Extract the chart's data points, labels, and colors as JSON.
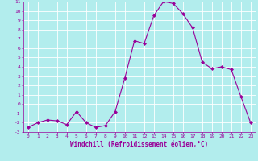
{
  "x": [
    0,
    1,
    2,
    3,
    4,
    5,
    6,
    7,
    8,
    9,
    10,
    11,
    12,
    13,
    14,
    15,
    16,
    17,
    18,
    19,
    20,
    21,
    22,
    23
  ],
  "y": [
    -2.5,
    -2.0,
    -1.7,
    -1.8,
    -2.2,
    -0.8,
    -2.0,
    -2.5,
    -2.3,
    -0.8,
    2.8,
    6.8,
    6.5,
    9.5,
    11.0,
    10.8,
    9.7,
    8.2,
    4.5,
    3.8,
    4.0,
    3.7,
    0.8,
    -2.0
  ],
  "line_color": "#990099",
  "marker": "D",
  "marker_size": 2,
  "bg_color": "#b2eded",
  "grid_color": "#ffffff",
  "xlabel": "Windchill (Refroidissement éolien,°C)",
  "xlim": [
    -0.5,
    23.5
  ],
  "ylim": [
    -3,
    11
  ],
  "yticks": [
    -3,
    -2,
    -1,
    0,
    1,
    2,
    3,
    4,
    5,
    6,
    7,
    8,
    9,
    10,
    11
  ],
  "xticks": [
    0,
    1,
    2,
    3,
    4,
    5,
    6,
    7,
    8,
    9,
    10,
    11,
    12,
    13,
    14,
    15,
    16,
    17,
    18,
    19,
    20,
    21,
    22,
    23
  ],
  "tick_color": "#990099",
  "label_color": "#990099",
  "tick_fontsize": 4.5,
  "label_fontsize": 5.5
}
